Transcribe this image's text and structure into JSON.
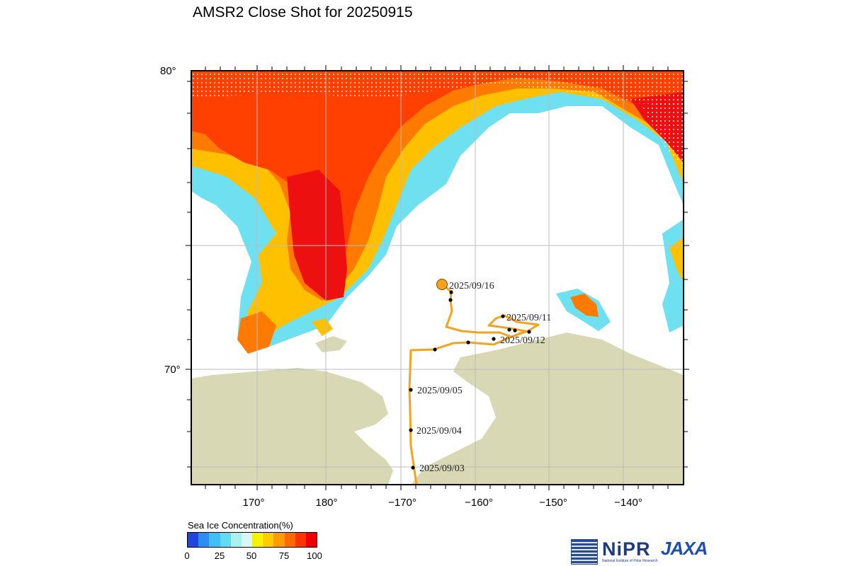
{
  "title": "AMSR2 Close Shot for 20250915",
  "map": {
    "lat_ticks": [
      "80°",
      "70°"
    ],
    "lon_ticks": [
      "170°",
      "180°",
      "−170°",
      "−160°",
      "−150°",
      "−140°"
    ],
    "colors": {
      "land": "#d8d9b4",
      "ocean": "#ffffff",
      "track": "#f5a21f",
      "grid": "#bbbbbb"
    }
  },
  "ship_track": {
    "current_position_label": "2025/09/16",
    "labels": [
      "2025/09/16",
      "2025/09/11",
      "2025/09/12",
      "2025/09/05",
      "2025/09/04",
      "2025/09/03"
    ]
  },
  "colorbar": {
    "title": "Sea Ice Concentration(%)",
    "ticks": [
      "0",
      "25",
      "50",
      "75",
      "100"
    ],
    "colors": [
      "#2244dd",
      "#2f8cf2",
      "#3cc0f6",
      "#62dbf2",
      "#a9f0f0",
      "#d8f7f7",
      "#f4f400",
      "#ffcc00",
      "#ff9c00",
      "#ff6a00",
      "#ff3300",
      "#ee0000"
    ]
  },
  "logos": {
    "nipr": "NiPR",
    "nipr_subtitle": "National Institute of Polar Research",
    "jaxa": "JAXA"
  }
}
